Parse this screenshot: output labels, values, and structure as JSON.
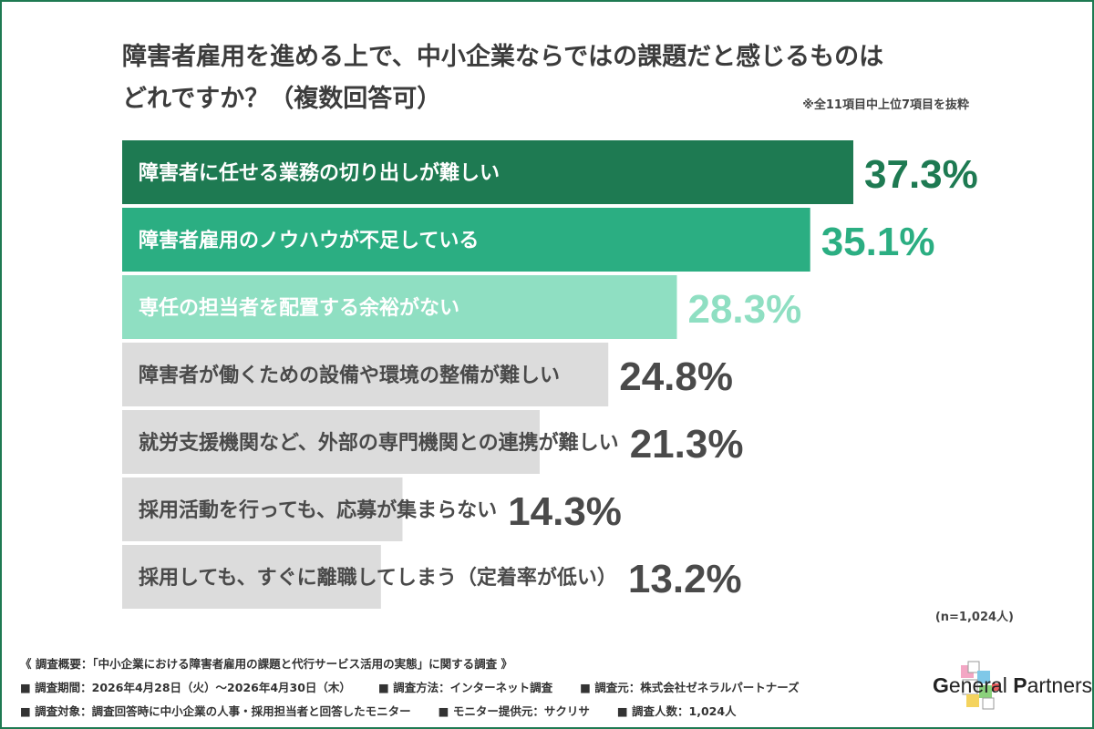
{
  "title_line1": "障害者雇用を進める上で、中小企業ならではの課題だと感じるものは",
  "title_line2": "どれですか？（複数回答可）",
  "subnote": "※全11項目中上位7項目を抜粋",
  "sample_size": "(n=1,024人)",
  "chart_data": {
    "type": "bar",
    "orientation": "horizontal",
    "categories": [
      "障害者に任せる業務の切り出しが難しい",
      "障害者雇用のノウハウが不足している",
      "専任の担当者を配置する余裕がない",
      "障害者が働くための設備や環境の整備が難しい",
      "就労支援機関など、外部の専門機関との連携が難しい",
      "採用活動を行っても、応募が集まらない",
      "採用しても、すぐに離職してしまう（定着率が低い）"
    ],
    "values": [
      37.3,
      35.1,
      28.3,
      24.8,
      21.3,
      14.3,
      13.2
    ],
    "value_labels": [
      "37.3%",
      "35.1%",
      "28.3%",
      "24.8%",
      "21.3%",
      "14.3%",
      "13.2%"
    ],
    "bar_colors": [
      "#1e7a52",
      "#2bae82",
      "#8fdfc2",
      "#dcdcdc",
      "#dcdcdc",
      "#dcdcdc",
      "#dcdcdc"
    ],
    "label_colors": [
      "#ffffff",
      "#ffffff",
      "#ffffff",
      "#4a4a4a",
      "#4a4a4a",
      "#4a4a4a",
      "#4a4a4a"
    ],
    "value_colors": [
      "#1e7a52",
      "#2bae82",
      "#8fdfc2",
      "#4a4a4a",
      "#4a4a4a",
      "#4a4a4a",
      "#4a4a4a"
    ]
  },
  "footer": {
    "heading": "《 調査概要：「中小企業における障害者雇用の課題と代行サービス活用の実態」に関する調査 》",
    "row1": [
      "■ 調査期間：2026年4月28日（火）〜2026年4月30日（木）",
      "■ 調査方法：インターネット調査",
      "■ 調査元：株式会社ゼネラルパートナーズ"
    ],
    "row2": [
      "■ 調査対象：調査回答時に中小企業の人事・採用担当者と回答したモニター",
      "■ モニター提供元：サクリサ",
      "■ 調査人数：1,024人"
    ]
  },
  "brand": {
    "logo_text_1": "G",
    "logo_text_2": "eneral ",
    "logo_text_3": "P",
    "logo_text_4": "artners",
    "logo_icon": "colorful-cubes-logo-icon"
  }
}
